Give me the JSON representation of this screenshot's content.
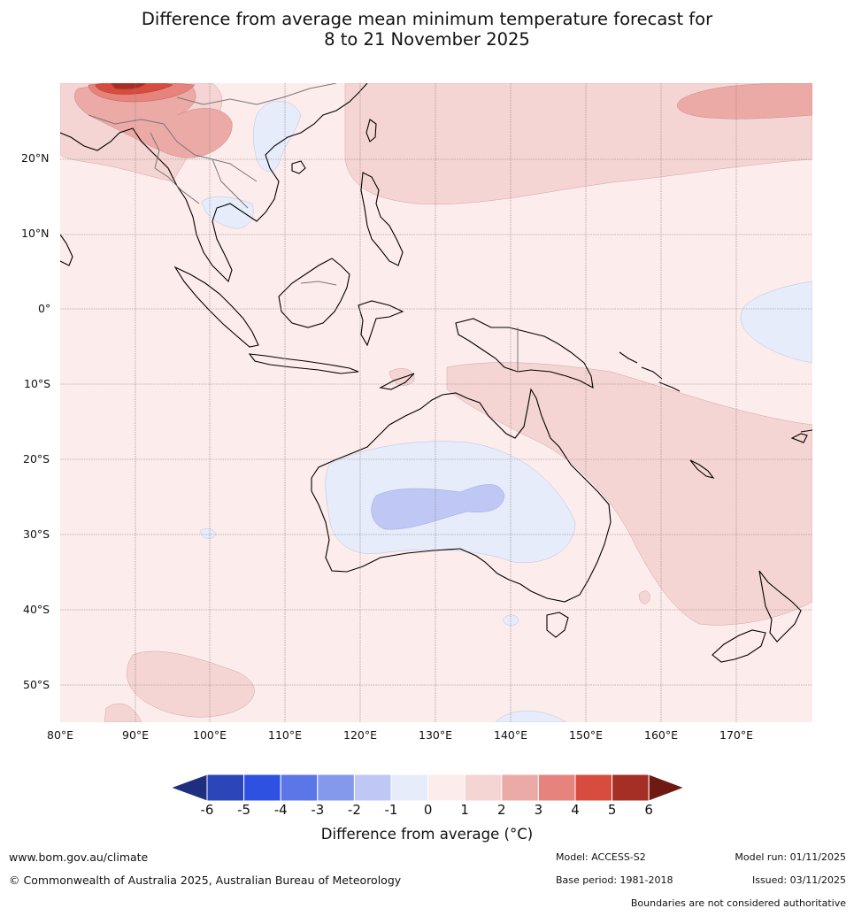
{
  "title": {
    "line1": "Difference from average mean minimum temperature forecast for",
    "line2": "8 to 21 November 2025"
  },
  "map": {
    "region": "Southeast Asia, Australia and western Pacific",
    "lat_labels": [
      "20°N",
      "10°N",
      "0°",
      "10°S",
      "20°S",
      "30°S",
      "40°S",
      "50°S"
    ],
    "lon_labels": [
      "80°E",
      "90°E",
      "100°E",
      "110°E",
      "120°E",
      "130°E",
      "140°E",
      "150°E",
      "160°E",
      "170°E"
    ]
  },
  "legend": {
    "ticks": [
      "-6",
      "-5",
      "-4",
      "-3",
      "-2",
      "-1",
      "0",
      "1",
      "2",
      "3",
      "4",
      "5",
      "6"
    ],
    "colors": [
      "#1e2f80",
      "#2a46b9",
      "#2f51e2",
      "#5b76e6",
      "#8499ec",
      "#bfc8f4",
      "#e7ecfb",
      "#fceceb",
      "#f5d5d3",
      "#ecaaa6",
      "#e6837c",
      "#d84b3f",
      "#a62f25",
      "#6e1912"
    ],
    "label": "Difference from average (°C)"
  },
  "footer": {
    "website": "www.bom.gov.au/climate",
    "copyright": "© Commonwealth of Australia 2025, Australian Bureau of Meteorology",
    "model": "Model: ACCESS-S2",
    "base_period": "Base period: 1981-2018",
    "model_run": "Model run: 01/11/2025",
    "issued": "Issued: 03/11/2025",
    "disclaimer": "Boundaries are not considered authoritative"
  }
}
